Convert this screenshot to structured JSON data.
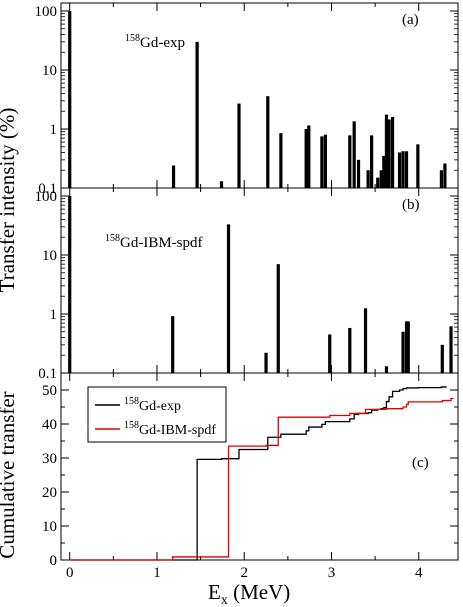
{
  "chart_data": [
    {
      "type": "bar",
      "panel_label": "(a)",
      "annotation": {
        "sup": "158",
        "text": "Gd-exp"
      },
      "yscale": "log",
      "ylim": [
        0.1,
        100
      ],
      "ytick_labels": [
        "0.1",
        "1",
        "10",
        "100"
      ],
      "ytick_values": [
        0.1,
        1,
        10,
        100
      ],
      "xlim": [
        -0.1,
        4.45
      ],
      "bar_color": "#000000",
      "x": [
        0.0,
        1.19,
        1.46,
        1.74,
        1.94,
        2.27,
        2.42,
        2.71,
        2.74,
        2.89,
        2.93,
        3.21,
        3.26,
        3.31,
        3.42,
        3.46,
        3.53,
        3.57,
        3.6,
        3.63,
        3.66,
        3.7,
        3.78,
        3.82,
        3.86,
        3.99,
        4.26,
        4.3
      ],
      "values": [
        100,
        0.24,
        30,
        0.13,
        2.7,
        3.6,
        0.85,
        1.0,
        1.15,
        0.75,
        0.8,
        0.78,
        1.35,
        0.3,
        0.2,
        0.78,
        0.15,
        0.2,
        0.35,
        1.75,
        1.45,
        1.6,
        0.4,
        0.42,
        0.42,
        0.55,
        0.2,
        0.26
      ]
    },
    {
      "type": "bar",
      "panel_label": "(b)",
      "annotation": {
        "sup": "158",
        "text": "Gd-IBM-spdf"
      },
      "yscale": "log",
      "ylim": [
        0.1,
        100
      ],
      "ytick_labels": [
        "0.1",
        "1",
        "10",
        "100"
      ],
      "ytick_values": [
        0.1,
        1,
        10,
        100
      ],
      "xlim": [
        -0.1,
        4.45
      ],
      "bar_color": "#000000",
      "x": [
        0.0,
        1.18,
        1.82,
        2.25,
        2.39,
        2.98,
        3.21,
        3.39,
        3.63,
        3.82,
        3.86,
        3.88,
        4.27,
        4.37
      ],
      "values": [
        100,
        0.92,
        33,
        0.22,
        7.0,
        0.45,
        0.58,
        1.25,
        0.13,
        0.5,
        0.75,
        0.75,
        0.3,
        0.62
      ]
    },
    {
      "type": "line",
      "panel_label": "(c)",
      "ylabel": "Cumulative transfer",
      "xlabel_main": "E",
      "xlabel_sub": "x",
      "xlabel_unit": " (MeV)",
      "ylim": [
        0,
        55
      ],
      "ytick_labels": [
        "0",
        "10",
        "20",
        "30",
        "40",
        "50"
      ],
      "ytick_values": [
        0,
        10,
        20,
        30,
        40,
        50
      ],
      "xlim": [
        -0.1,
        4.45
      ],
      "xtick_labels": [
        "0",
        "1",
        "2",
        "3",
        "4"
      ],
      "xtick_values": [
        0,
        1,
        2,
        3,
        4
      ],
      "legend_position": "top-left",
      "series": [
        {
          "sup": "158",
          "name": "Gd-exp",
          "color": "#000000",
          "x": [
            0.0,
            1.19,
            1.46,
            1.74,
            1.94,
            2.27,
            2.42,
            2.71,
            2.74,
            2.89,
            2.93,
            3.21,
            3.26,
            3.31,
            3.42,
            3.46,
            3.53,
            3.57,
            3.6,
            3.63,
            3.66,
            3.7,
            3.78,
            3.82,
            3.86,
            3.99,
            4.26,
            4.3
          ],
          "y": [
            0.0,
            0.0,
            29.6,
            29.8,
            32.5,
            36.1,
            37.0,
            38.0,
            39.1,
            39.9,
            40.7,
            41.5,
            42.8,
            43.1,
            43.3,
            44.1,
            44.3,
            44.5,
            44.8,
            46.6,
            48.0,
            49.6,
            50.0,
            50.4,
            50.6,
            50.7,
            50.9,
            50.9
          ],
          "x_end": 4.32
        },
        {
          "sup": "158",
          "name": "Gd-IBM-spdf",
          "color": "#e00000",
          "x": [
            0.0,
            1.18,
            1.82,
            2.25,
            2.39,
            2.98,
            3.21,
            3.39,
            3.63,
            3.82,
            3.86,
            3.88,
            4.27,
            4.37
          ],
          "y": [
            0.0,
            0.9,
            33.5,
            33.7,
            42.0,
            42.5,
            43.1,
            44.3,
            44.5,
            45.0,
            45.8,
            46.5,
            46.9,
            47.5
          ],
          "x_end": 4.4
        }
      ]
    }
  ],
  "shared_ylabel": "Transfer  intensity (%)"
}
